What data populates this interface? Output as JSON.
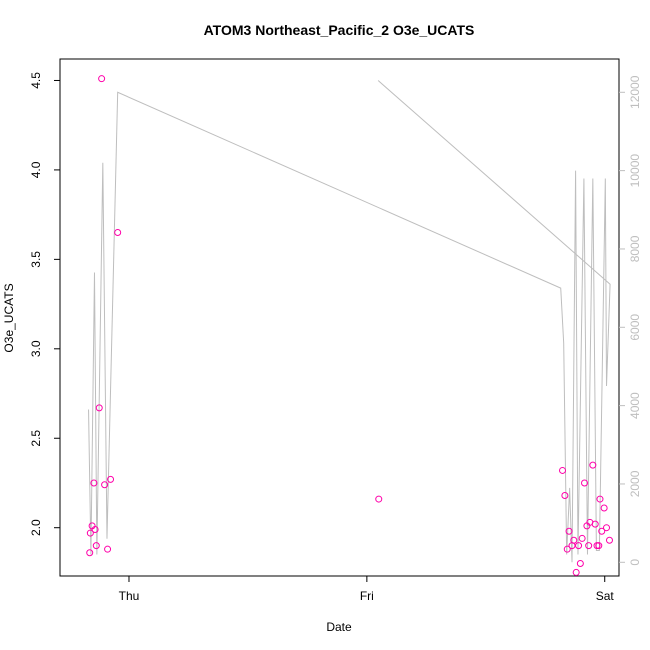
{
  "chart_data": {
    "type": "scatter",
    "title": "ATOM3 Northeast_Pacific_2 O3e_UCATS",
    "xlabel": "Date",
    "ylabel": "O3e_UCATS",
    "x_ticks": [
      "Thu",
      "Fri",
      "Sat"
    ],
    "y_ticks": [
      "2.0",
      "2.5",
      "3.0",
      "3.5",
      "4.0",
      "4.5"
    ],
    "y2_ticks": [
      "0",
      "2000",
      "4000",
      "6000",
      "8000",
      "10000",
      "12000"
    ],
    "ylim": [
      1.73,
      4.62
    ],
    "y2lim": [
      -350,
      12850
    ],
    "xlim_hours": [
      -2.5,
      44.5
    ],
    "grid": false,
    "colors": {
      "points": "#ff00aa",
      "altitude_line": "#bebebe",
      "axis": "#000000",
      "right_axis": "#bebebe"
    },
    "series": [
      {
        "name": "O3e_UCATS",
        "style": "points",
        "points": [
          {
            "t": 0.0,
            "v": 1.86
          },
          {
            "t": 0.05,
            "v": 1.97
          },
          {
            "t": 0.2,
            "v": 2.01
          },
          {
            "t": 0.35,
            "v": 2.25
          },
          {
            "t": 0.45,
            "v": 1.99
          },
          {
            "t": 0.55,
            "v": 1.9
          },
          {
            "t": 0.8,
            "v": 2.67
          },
          {
            "t": 1.0,
            "v": 4.51
          },
          {
            "t": 1.25,
            "v": 2.24
          },
          {
            "t": 1.5,
            "v": 1.88
          },
          {
            "t": 1.75,
            "v": 2.27
          },
          {
            "t": 2.35,
            "v": 3.65
          },
          {
            "t": 24.3,
            "v": 2.16
          },
          {
            "t": 39.75,
            "v": 2.32
          },
          {
            "t": 39.95,
            "v": 2.18
          },
          {
            "t": 40.15,
            "v": 1.88
          },
          {
            "t": 40.3,
            "v": 1.98
          },
          {
            "t": 40.55,
            "v": 1.9
          },
          {
            "t": 40.7,
            "v": 1.93
          },
          {
            "t": 40.9,
            "v": 1.75
          },
          {
            "t": 41.1,
            "v": 1.9
          },
          {
            "t": 41.25,
            "v": 1.8
          },
          {
            "t": 41.4,
            "v": 1.94
          },
          {
            "t": 41.6,
            "v": 2.25
          },
          {
            "t": 41.8,
            "v": 2.01
          },
          {
            "t": 41.95,
            "v": 1.9
          },
          {
            "t": 42.05,
            "v": 2.03
          },
          {
            "t": 42.3,
            "v": 2.35
          },
          {
            "t": 42.5,
            "v": 2.02
          },
          {
            "t": 42.65,
            "v": 1.9
          },
          {
            "t": 42.8,
            "v": 1.9
          },
          {
            "t": 42.9,
            "v": 2.16
          },
          {
            "t": 43.05,
            "v": 1.98
          },
          {
            "t": 43.25,
            "v": 2.11
          },
          {
            "t": 43.45,
            "v": 2.0
          },
          {
            "t": 43.7,
            "v": 1.93
          }
        ]
      },
      {
        "style": "line",
        "axis": "right",
        "points": [
          {
            "t": -0.1,
            "v": 3900
          },
          {
            "t": 0.1,
            "v": 200
          },
          {
            "t": 0.4,
            "v": 7400
          },
          {
            "t": 0.6,
            "v": 200
          },
          {
            "t": 1.1,
            "v": 10200
          },
          {
            "t": 1.45,
            "v": 600
          },
          {
            "t": 2.35,
            "v": 12000
          },
          {
            "t": 39.6,
            "v": 7000
          },
          {
            "t": 39.85,
            "v": 5600
          },
          {
            "t": 40.1,
            "v": 200
          },
          {
            "t": 40.35,
            "v": 1900
          },
          {
            "t": 40.55,
            "v": 0
          },
          {
            "t": 40.85,
            "v": 10000
          },
          {
            "t": 41.05,
            "v": 200
          },
          {
            "t": 41.55,
            "v": 9800
          },
          {
            "t": 41.85,
            "v": 200
          },
          {
            "t": 42.3,
            "v": 9800
          },
          {
            "t": 42.6,
            "v": 300
          },
          {
            "t": 42.85,
            "v": 300
          },
          {
            "t": 43.35,
            "v": 9800
          },
          {
            "t": 43.45,
            "v": 4500
          },
          {
            "t": 43.75,
            "v": 7100
          },
          {
            "t": 24.25,
            "v": 12300
          }
        ]
      }
    ]
  }
}
